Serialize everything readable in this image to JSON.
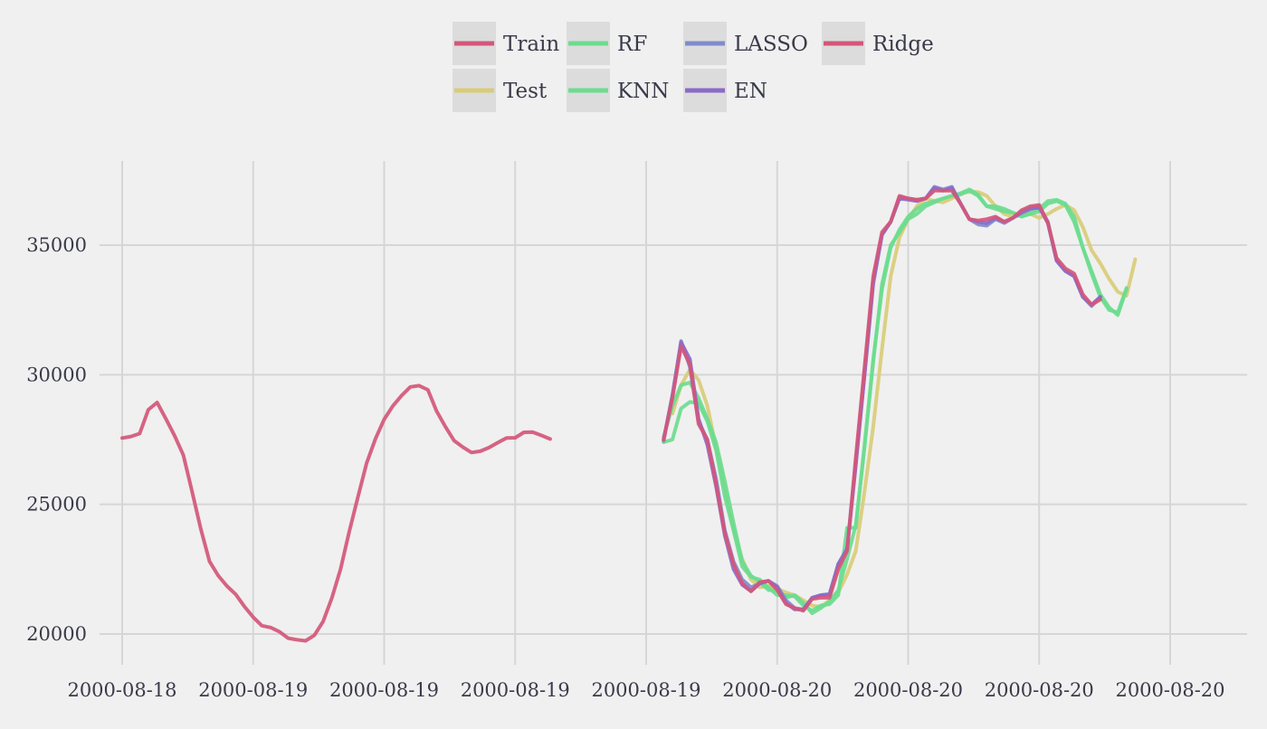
{
  "chart_data": {
    "type": "line",
    "title": "",
    "xlabel": "",
    "ylabel": "",
    "x_tick_labels": [
      "2000-08-18",
      "2000-08-19",
      "2000-08-19",
      "2000-08-19",
      "2000-08-19",
      "2000-08-20",
      "2000-08-20",
      "2000-08-20",
      "2000-08-20"
    ],
    "y_ticks": [
      20000,
      25000,
      30000,
      35000
    ],
    "ylim": [
      19300,
      38200
    ],
    "xlim": [
      -4,
      148
    ],
    "x_unit": "hour index (1 step = 1 hour, tick every 15 steps)",
    "grid": true,
    "legend_position": "top-center",
    "series": [
      {
        "name": "Train",
        "color": "#d4577a",
        "x_start": 0,
        "values": [
          27560,
          27620,
          27730,
          28650,
          28930,
          28300,
          27650,
          26900,
          25500,
          24050,
          22800,
          22250,
          21850,
          21530,
          21060,
          20650,
          20320,
          20250,
          20090,
          19840,
          19780,
          19740,
          19950,
          20480,
          21380,
          22500,
          23950,
          25300,
          26600,
          27530,
          28280,
          28800,
          29200,
          29530,
          29580,
          29420,
          28600,
          28000,
          27460,
          27210,
          27000,
          27050,
          27190,
          27380,
          27560,
          27570,
          27780,
          27790,
          27660,
          27520
        ]
      },
      {
        "name": "Test",
        "color": "#d9cc78",
        "x_start": 63,
        "values": [
          28500,
          29600,
          30200,
          29800,
          28800,
          27200,
          25600,
          24000,
          22900,
          22100,
          21800,
          21850,
          21750,
          21600,
          21500,
          21300,
          21100,
          21050,
          21300,
          21600,
          22300,
          23200,
          25500,
          28000,
          31000,
          33800,
          35300,
          36000,
          36500,
          36800,
          36700,
          36650,
          36800,
          37000,
          37050,
          37050,
          36900,
          36500,
          36200,
          36100,
          36150,
          36200,
          36050,
          36200,
          36400,
          36550,
          36350,
          35700,
          34800,
          34300,
          33700,
          33200,
          33050,
          34450
        ]
      },
      {
        "name": "RF",
        "color": "#6ddc8f",
        "x_start": 62,
        "values": [
          27400,
          27500,
          28700,
          28950,
          28900,
          28200,
          27100,
          25300,
          24000,
          22600,
          22200,
          22100,
          21800,
          21500,
          21500,
          21450,
          21100,
          20900,
          21100,
          21150,
          21500,
          24100,
          24100,
          27300,
          30500,
          33500,
          35000,
          35500,
          36000,
          36200,
          36500,
          36650,
          36800,
          36900,
          36950,
          37100,
          36900,
          36500,
          36400,
          36300,
          36250,
          36100,
          36200,
          36300,
          36600,
          36700,
          36550,
          35900,
          34900,
          34000,
          33100,
          32600,
          32300,
          33300
        ]
      },
      {
        "name": "KNN",
        "color": "#6ddc8f",
        "x_start": 62,
        "values": [
          27600,
          28800,
          29600,
          29700,
          29100,
          28300,
          27400,
          25900,
          24300,
          22800,
          22250,
          22000,
          21700,
          21650,
          21400,
          21500,
          21200,
          20800,
          21000,
          21250,
          21700,
          22900,
          24200,
          27200,
          30600,
          33300,
          34900,
          35600,
          36100,
          36400,
          36600,
          36700,
          36800,
          36900,
          37000,
          37150,
          36950,
          36500,
          36500,
          36400,
          36250,
          36100,
          36300,
          36400,
          36700,
          36750,
          36600,
          36100,
          34900,
          33900,
          33000,
          32500,
          32400,
          33350
        ]
      },
      {
        "name": "LASSO",
        "color": "#7f8ccd",
        "x_start": 62,
        "values": [
          27450,
          29200,
          31300,
          30300,
          28200,
          27500,
          26000,
          24000,
          22800,
          22100,
          21800,
          21950,
          22050,
          21850,
          21300,
          21000,
          20950,
          21400,
          21500,
          21550,
          22700,
          23300,
          26600,
          30000,
          33500,
          35400,
          35900,
          36850,
          36800,
          36750,
          36800,
          37250,
          37150,
          37250,
          36600,
          36000,
          35800,
          35750,
          36000,
          35850,
          36050,
          36300,
          36450,
          36500,
          35900,
          34400,
          34000,
          33800,
          33000,
          32650,
          33000
        ]
      },
      {
        "name": "EN",
        "color": "#8c69c9",
        "x_start": 62,
        "values": [
          27500,
          29200,
          31250,
          30600,
          28300,
          27300,
          25700,
          23800,
          22500,
          21900,
          21650,
          21950,
          22050,
          21800,
          21200,
          20950,
          20950,
          21400,
          21500,
          21500,
          22700,
          23250,
          26500,
          30000,
          33600,
          35400,
          35900,
          36800,
          36750,
          36700,
          36800,
          37200,
          37100,
          37200,
          36600,
          36000,
          35900,
          35850,
          36050,
          35900,
          36050,
          36250,
          36400,
          36450,
          35850,
          34400,
          34000,
          33800,
          33000,
          32700,
          33000
        ]
      },
      {
        "name": "Ridge",
        "color": "#d4577a",
        "x_start": 62,
        "values": [
          27500,
          29100,
          31100,
          30400,
          28100,
          27500,
          25800,
          23900,
          22700,
          21950,
          21650,
          22000,
          22050,
          21700,
          21150,
          21000,
          20900,
          21350,
          21400,
          21400,
          22500,
          23200,
          26800,
          30300,
          33800,
          35500,
          35900,
          36900,
          36800,
          36750,
          36800,
          37100,
          37100,
          37100,
          36600,
          36000,
          35950,
          36000,
          36100,
          35900,
          36050,
          36350,
          36500,
          36550,
          35850,
          34500,
          34100,
          33900,
          33100,
          32700,
          32900
        ]
      }
    ]
  }
}
